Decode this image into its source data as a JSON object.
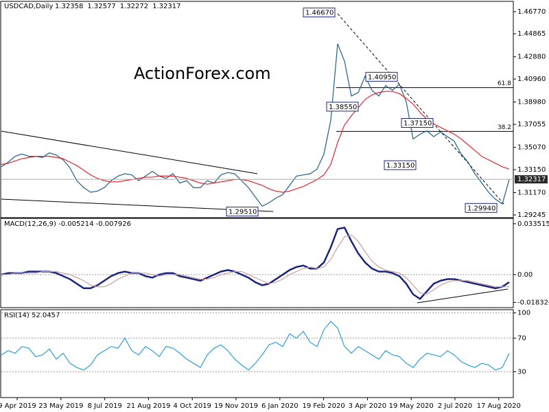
{
  "chart_data": [
    {
      "type": "line",
      "title": "USDCAD,Daily",
      "quote": [
        "1.32358",
        "1.32577",
        "1.32272",
        "1.32317"
      ],
      "ylim": [
        1.2907,
        1.476
      ],
      "yticks": [
        {
          "value": 1.4677,
          "label": "1.46770"
        },
        {
          "value": 1.44865,
          "label": "1.44865"
        },
        {
          "value": 1.4288,
          "label": "1.42880"
        },
        {
          "value": 1.4096,
          "label": "1.40960"
        },
        {
          "value": 1.3898,
          "label": "1.38980"
        },
        {
          "value": 1.37055,
          "label": "1.37055"
        },
        {
          "value": 1.3507,
          "label": "1.35070"
        },
        {
          "value": 1.3315,
          "label": "1.33150"
        },
        {
          "value": 1.3117,
          "label": "1.31170"
        },
        {
          "value": 1.29245,
          "label": "1.29245"
        }
      ],
      "price_labels": [
        "1.46670",
        "1.40950",
        "1.38550",
        "1.37150",
        "1.33150",
        "1.29940",
        "1.29510"
      ],
      "levels": [
        {
          "value": 1.4022,
          "label": "61.8"
        },
        {
          "value": 1.3645,
          "label": "38.2"
        }
      ],
      "series": [
        {
          "color": "#1f5f8b",
          "values": [
            1.334,
            1.338,
            1.343,
            1.345,
            1.343,
            1.343,
            1.342,
            1.346,
            1.344,
            1.34,
            1.333,
            1.322,
            1.316,
            1.312,
            1.313,
            1.316,
            1.322,
            1.326,
            1.328,
            1.327,
            1.322,
            1.326,
            1.33,
            1.326,
            1.324,
            1.328,
            1.32,
            1.322,
            1.316,
            1.316,
            1.322,
            1.32,
            1.327,
            1.329,
            1.328,
            1.322,
            1.316,
            1.308,
            1.3,
            1.303,
            1.307,
            1.31,
            1.318,
            1.326,
            1.327,
            1.328,
            1.332,
            1.345,
            1.374,
            1.44,
            1.425,
            1.395,
            1.398,
            1.412,
            1.4,
            1.395,
            1.404,
            1.4,
            1.405,
            1.39,
            1.358,
            1.362,
            1.365,
            1.36,
            1.364,
            1.36,
            1.356,
            1.345,
            1.338,
            1.328,
            1.32,
            1.312,
            1.306,
            1.302,
            1.323
          ]
        },
        {
          "color": "#e0262e",
          "values": [
            1.336,
            1.337,
            1.339,
            1.341,
            1.342,
            1.343,
            1.343,
            1.343,
            1.342,
            1.341,
            1.338,
            1.335,
            1.331,
            1.327,
            1.324,
            1.322,
            1.321,
            1.321,
            1.322,
            1.323,
            1.324,
            1.325,
            1.325,
            1.326,
            1.326,
            1.326,
            1.325,
            1.324,
            1.322,
            1.32,
            1.319,
            1.32,
            1.321,
            1.322,
            1.323,
            1.323,
            1.322,
            1.32,
            1.318,
            1.315,
            1.313,
            1.312,
            1.313,
            1.315,
            1.317,
            1.32,
            1.323,
            1.327,
            1.336,
            1.355,
            1.37,
            1.378,
            1.385,
            1.392,
            1.396,
            1.398,
            1.399,
            1.399,
            1.397,
            1.393,
            1.388,
            1.381,
            1.375,
            1.371,
            1.368,
            1.365,
            1.362,
            1.358,
            1.353,
            1.348,
            1.343,
            1.34,
            1.337,
            1.334,
            1.332
          ]
        }
      ]
    },
    {
      "type": "line",
      "title": "MACD(12,26,9) -0.005214 -0.007926",
      "ylim": [
        -0.0213,
        0.0366
      ],
      "yticks": [
        {
          "value": 0.033515,
          "label": "0.033515"
        },
        {
          "value": 0,
          "label": "0.00"
        },
        {
          "value": -0.018324,
          "label": "-0.018324"
        }
      ],
      "series": [
        {
          "color": "#1a237e",
          "values": [
            0.0,
            0.001,
            0.001,
            0.001,
            0.002,
            0.002,
            0.002,
            0.002,
            0.001,
            -0.001,
            -0.003,
            -0.006,
            -0.009,
            -0.009,
            -0.007,
            -0.004,
            -0.001,
            0.001,
            0.002,
            0.001,
            0.001,
            -0.001,
            -0.002,
            0.0,
            0.001,
            0.001,
            -0.001,
            -0.002,
            -0.003,
            -0.004,
            -0.002,
            0.0,
            0.002,
            0.003,
            0.002,
            0.0,
            -0.002,
            -0.005,
            -0.007,
            -0.006,
            -0.003,
            0.0,
            0.003,
            0.005,
            0.006,
            0.004,
            0.004,
            0.008,
            0.018,
            0.03,
            0.031,
            0.022,
            0.014,
            0.008,
            0.004,
            0.002,
            0.002,
            0.001,
            -0.001,
            -0.006,
            -0.013,
            -0.016,
            -0.011,
            -0.006,
            -0.004,
            -0.003,
            -0.003,
            -0.004,
            -0.005,
            -0.006,
            -0.007,
            -0.008,
            -0.009,
            -0.008,
            -0.005
          ]
        },
        {
          "color": "#c9a0a0",
          "values": [
            0.0,
            0.0,
            0.001,
            0.001,
            0.001,
            0.001,
            0.002,
            0.002,
            0.002,
            0.001,
            0.0,
            -0.002,
            -0.004,
            -0.007,
            -0.008,
            -0.008,
            -0.006,
            -0.003,
            -0.001,
            0.001,
            0.001,
            0.001,
            0.0,
            -0.001,
            0.0,
            0.0,
            0.0,
            -0.001,
            -0.002,
            -0.003,
            -0.003,
            -0.002,
            0.0,
            0.001,
            0.002,
            0.002,
            0.0,
            -0.002,
            -0.004,
            -0.006,
            -0.005,
            -0.003,
            0.0,
            0.002,
            0.004,
            0.005,
            0.004,
            0.005,
            0.01,
            0.018,
            0.025,
            0.026,
            0.022,
            0.015,
            0.009,
            0.005,
            0.003,
            0.002,
            0.001,
            -0.002,
            -0.007,
            -0.012,
            -0.013,
            -0.01,
            -0.007,
            -0.005,
            -0.004,
            -0.004,
            -0.004,
            -0.005,
            -0.006,
            -0.007,
            -0.008,
            -0.008,
            -0.008
          ]
        }
      ]
    },
    {
      "type": "line",
      "title": "RSI(14) 52.0457",
      "ylim": [
        0,
        103
      ],
      "yticks": [
        30,
        70,
        100
      ],
      "grid": true,
      "series": [
        {
          "color": "#2a9fd6",
          "values": [
            50,
            55,
            52,
            60,
            58,
            48,
            50,
            57,
            45,
            52,
            40,
            35,
            32,
            38,
            50,
            55,
            60,
            58,
            70,
            55,
            50,
            60,
            55,
            48,
            60,
            58,
            52,
            45,
            40,
            35,
            50,
            58,
            62,
            55,
            45,
            38,
            32,
            40,
            50,
            62,
            65,
            60,
            75,
            70,
            78,
            65,
            60,
            80,
            90,
            82,
            60,
            52,
            60,
            55,
            50,
            45,
            55,
            50,
            48,
            40,
            35,
            45,
            52,
            50,
            48,
            55,
            50,
            42,
            38,
            35,
            40,
            38,
            32,
            35,
            52
          ]
        }
      ]
    }
  ],
  "time_axis": [
    "9 Apr 2019",
    "23 May 2019",
    "8 Jul 2019",
    "21 Aug 2019",
    "4 Oct 2019",
    "19 Nov 2019",
    "6 Jan 2020",
    "19 Feb 2020",
    "3 Apr 2020",
    "19 May 2020",
    "2 Jul 2020",
    "17 Aug 2020"
  ],
  "watermark": "ActionForex.com"
}
